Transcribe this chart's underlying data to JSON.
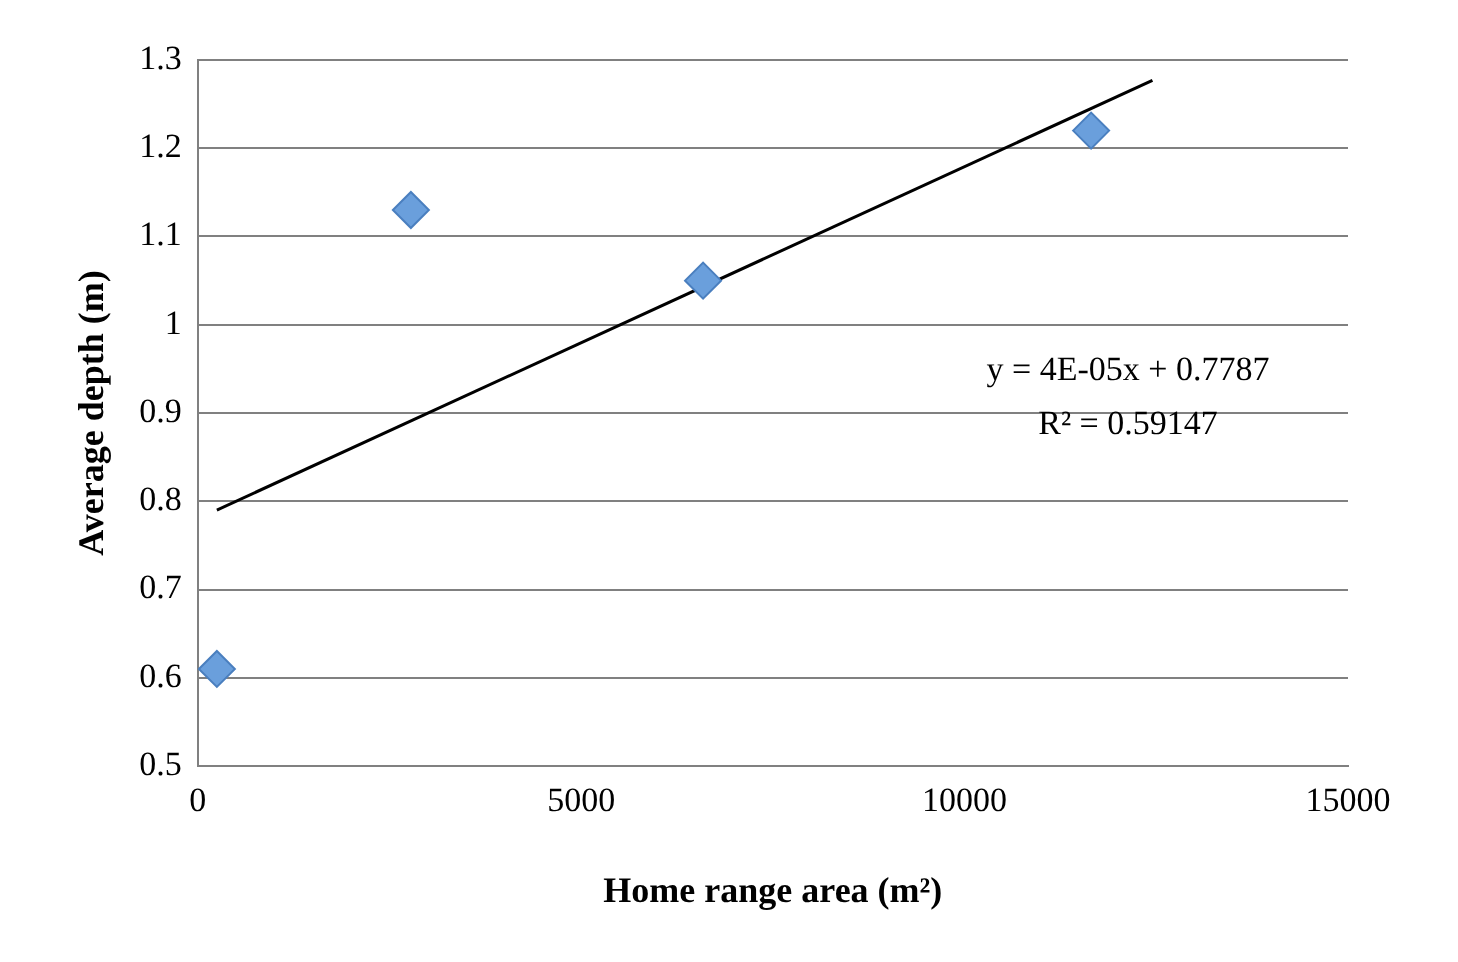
{
  "chart_data": {
    "type": "scatter",
    "xlabel": "Home range area (m²)",
    "ylabel": "Average depth (m)",
    "xlim": [
      0,
      15000
    ],
    "xticks": [
      0,
      5000,
      10000,
      15000
    ],
    "ylim": [
      0.5,
      1.3
    ],
    "yticks": [
      0.5,
      0.6,
      0.7,
      0.8,
      0.9,
      1,
      1.1,
      1.2,
      1.3
    ],
    "grid": "y",
    "legend": false,
    "marker": "diamond",
    "series": [
      {
        "color": "#6a9fdc",
        "x": [
          250,
          2780,
          6590,
          11650
        ],
        "values": [
          0.61,
          1.13,
          1.05,
          1.22
        ]
      },
      {
        "type": "line",
        "color": "#000000",
        "marker": "none",
        "x": [
          250,
          12450
        ],
        "values": [
          0.79,
          1.277
        ]
      }
    ],
    "annotations": [
      "y = 4E-05x + 0.7787",
      "R² = 0.59147"
    ]
  }
}
